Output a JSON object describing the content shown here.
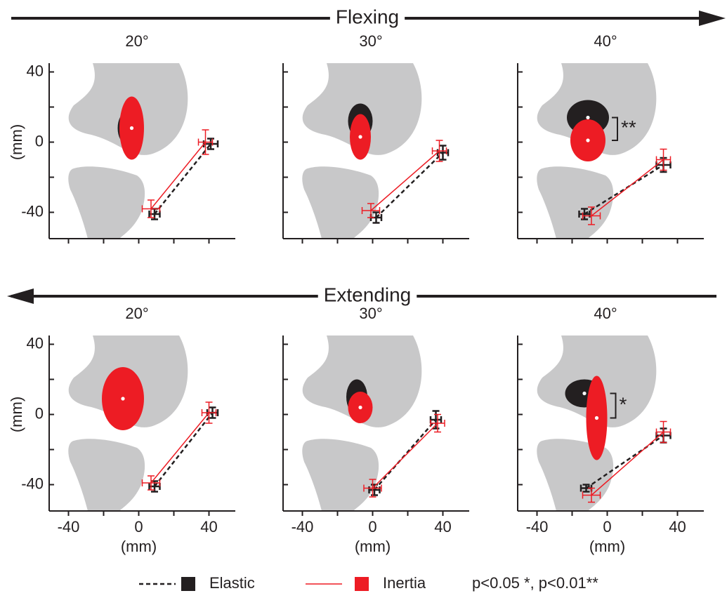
{
  "sections": [
    {
      "title": "Flexing",
      "direction": "right"
    },
    {
      "title": "Extending",
      "direction": "left"
    }
  ],
  "legend": [
    {
      "name": "Elastic",
      "color": "#231f20",
      "dash": true
    },
    {
      "name": "Inertia",
      "color": "#ed1c24",
      "dash": false
    }
  ],
  "note": "p<0.05 *, p<0.01**",
  "chart_data": [
    {
      "type": "line",
      "title": "20°",
      "ylabel": "(mm)",
      "xlim": [
        -51,
        55
      ],
      "ylim": [
        -55,
        45
      ],
      "xticks": [
        -40,
        0,
        40
      ],
      "yticks": [
        -40,
        0,
        40
      ],
      "xminorticks": [
        -20,
        20
      ],
      "yminorticks": [
        -20,
        20
      ],
      "xtick_labels": false,
      "ytick_labels": true,
      "series": [
        {
          "x": [
            9,
            41
          ],
          "values": [
            -41,
            -1
          ],
          "xerr": [
            3,
            4
          ],
          "yerr": [
            3,
            3
          ],
          "ellipse": {
            "x": -7,
            "y": 8,
            "width": 5,
            "height": 9
          }
        },
        {
          "x": [
            7,
            38
          ],
          "values": [
            -38,
            0
          ],
          "xerr": [
            5,
            4
          ],
          "yerr": [
            5,
            7
          ],
          "ellipse": {
            "x": -4,
            "y": 8,
            "width": 7,
            "height": 18
          }
        }
      ]
    },
    {
      "type": "line",
      "title": "30°",
      "xlim": [
        -51,
        55
      ],
      "ylim": [
        -55,
        45
      ],
      "xticks": [
        -40,
        0,
        40
      ],
      "yticks": [
        -40,
        0,
        40
      ],
      "xminorticks": [
        -20,
        20
      ],
      "yminorticks": [
        -20,
        20
      ],
      "xtick_labels": false,
      "ytick_labels": false,
      "series": [
        {
          "x": [
            2,
            40
          ],
          "values": [
            -43,
            -6
          ],
          "xerr": [
            3,
            3
          ],
          "yerr": [
            3,
            4
          ],
          "ellipse": {
            "x": -7,
            "y": 12,
            "width": 7,
            "height": 10
          }
        },
        {
          "x": [
            -1,
            38
          ],
          "values": [
            -39,
            -5
          ],
          "xerr": [
            5,
            4
          ],
          "yerr": [
            4,
            6
          ],
          "ellipse": {
            "x": -7,
            "y": 3,
            "width": 6,
            "height": 13
          }
        }
      ]
    },
    {
      "type": "line",
      "title": "40°",
      "xlim": [
        -51,
        55
      ],
      "ylim": [
        -55,
        45
      ],
      "xticks": [
        -40,
        0,
        40
      ],
      "yticks": [
        -40,
        0,
        40
      ],
      "xminorticks": [
        -20,
        20
      ],
      "yminorticks": [
        -20,
        20
      ],
      "xtick_labels": false,
      "ytick_labels": false,
      "annotation": "**",
      "series": [
        {
          "x": [
            -13,
            32
          ],
          "values": [
            -41,
            -13
          ],
          "xerr": [
            3,
            4
          ],
          "yerr": [
            3,
            4
          ],
          "ellipse": {
            "x": -11,
            "y": 14,
            "width": 12,
            "height": 10
          }
        },
        {
          "x": [
            -9,
            32
          ],
          "values": [
            -42,
            -10
          ],
          "xerr": [
            5,
            4
          ],
          "yerr": [
            5,
            6
          ],
          "ellipse": {
            "x": -11,
            "y": 1,
            "width": 10,
            "height": 12
          }
        }
      ]
    },
    {
      "type": "line",
      "title": "20°",
      "ylabel": "(mm)",
      "xlabel": "(mm)",
      "xlim": [
        -51,
        55
      ],
      "ylim": [
        -55,
        45
      ],
      "xticks": [
        -40,
        0,
        40
      ],
      "yticks": [
        -40,
        0,
        40
      ],
      "xminorticks": [
        -20,
        20
      ],
      "yminorticks": [
        -20,
        20
      ],
      "xtick_labels": true,
      "ytick_labels": true,
      "series": [
        {
          "x": [
            9,
            42
          ],
          "values": [
            -41,
            1
          ],
          "xerr": [
            3,
            3
          ],
          "yerr": [
            3,
            3
          ],
          "ellipse": {
            "x": -11,
            "y": 12,
            "width": 6,
            "height": 11
          }
        },
        {
          "x": [
            7,
            40
          ],
          "values": [
            -39,
            1
          ],
          "xerr": [
            5,
            4
          ],
          "yerr": [
            4,
            6
          ],
          "ellipse": {
            "x": -9,
            "y": 9,
            "width": 12,
            "height": 18
          }
        }
      ]
    },
    {
      "type": "line",
      "title": "30°",
      "xlabel": "(mm)",
      "xlim": [
        -51,
        55
      ],
      "ylim": [
        -55,
        45
      ],
      "xticks": [
        -40,
        0,
        40
      ],
      "yticks": [
        -40,
        0,
        40
      ],
      "xminorticks": [
        -20,
        20
      ],
      "yminorticks": [
        -20,
        20
      ],
      "xtick_labels": true,
      "ytick_labels": false,
      "series": [
        {
          "x": [
            1,
            36
          ],
          "values": [
            -43,
            -3
          ],
          "xerr": [
            3,
            3
          ],
          "yerr": [
            3,
            5
          ],
          "ellipse": {
            "x": -9,
            "y": 10,
            "width": 6,
            "height": 10
          }
        },
        {
          "x": [
            0,
            37
          ],
          "values": [
            -42,
            -5
          ],
          "xerr": [
            5,
            4
          ],
          "yerr": [
            5,
            5
          ],
          "ellipse": {
            "x": -7,
            "y": 4,
            "width": 7,
            "height": 9
          }
        }
      ]
    },
    {
      "type": "line",
      "title": "40°",
      "xlabel": "(mm)",
      "xlim": [
        -51,
        55
      ],
      "ylim": [
        -55,
        45
      ],
      "xticks": [
        -40,
        0,
        40
      ],
      "yticks": [
        -40,
        0,
        40
      ],
      "xminorticks": [
        -20,
        20
      ],
      "yminorticks": [
        -20,
        20
      ],
      "xtick_labels": true,
      "ytick_labels": false,
      "annotation": "*",
      "series": [
        {
          "x": [
            -12,
            32
          ],
          "values": [
            -42,
            -12
          ],
          "xerr": [
            3,
            4
          ],
          "yerr": [
            2,
            4
          ],
          "ellipse": {
            "x": -13,
            "y": 12,
            "width": 11,
            "height": 8
          }
        },
        {
          "x": [
            -9,
            32
          ],
          "values": [
            -46,
            -10
          ],
          "xerr": [
            5,
            4
          ],
          "yerr": [
            4,
            6
          ],
          "ellipse": {
            "x": -6,
            "y": -2,
            "width": 6,
            "height": 24
          }
        }
      ]
    }
  ]
}
